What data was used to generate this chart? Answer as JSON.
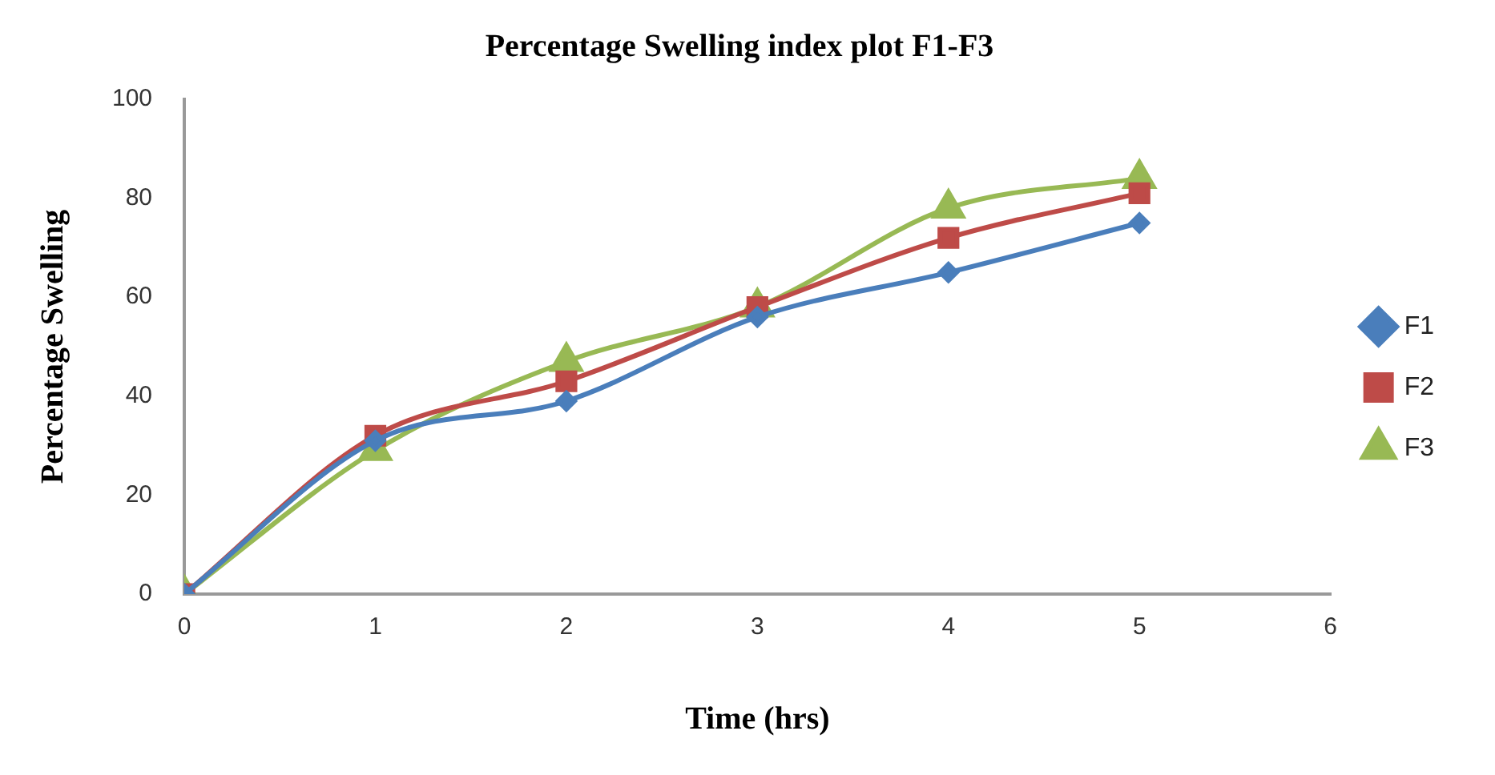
{
  "chart_data": {
    "type": "line",
    "title": "Percentage Swelling index plot F1-F3",
    "xlabel": "Time (hrs)",
    "ylabel": "Percentage Swelling",
    "x": [
      0,
      1,
      2,
      3,
      4,
      5
    ],
    "xlim": [
      0,
      6
    ],
    "xticks": [
      0,
      1,
      2,
      3,
      4,
      5,
      6
    ],
    "ylim": [
      0,
      100
    ],
    "yticks": [
      0,
      20,
      40,
      60,
      80,
      100
    ],
    "grid": false,
    "legend": "right",
    "series": [
      {
        "name": "F1",
        "color": "#4a7ebb",
        "marker": "diamond",
        "values": [
          0,
          31,
          39,
          56,
          65,
          75
        ]
      },
      {
        "name": "F2",
        "color": "#be4b48",
        "marker": "square",
        "values": [
          0,
          32,
          43,
          58,
          72,
          81
        ]
      },
      {
        "name": "F3",
        "color": "#98b954",
        "marker": "triangle",
        "values": [
          0,
          29,
          47,
          58,
          78,
          84
        ]
      }
    ]
  }
}
